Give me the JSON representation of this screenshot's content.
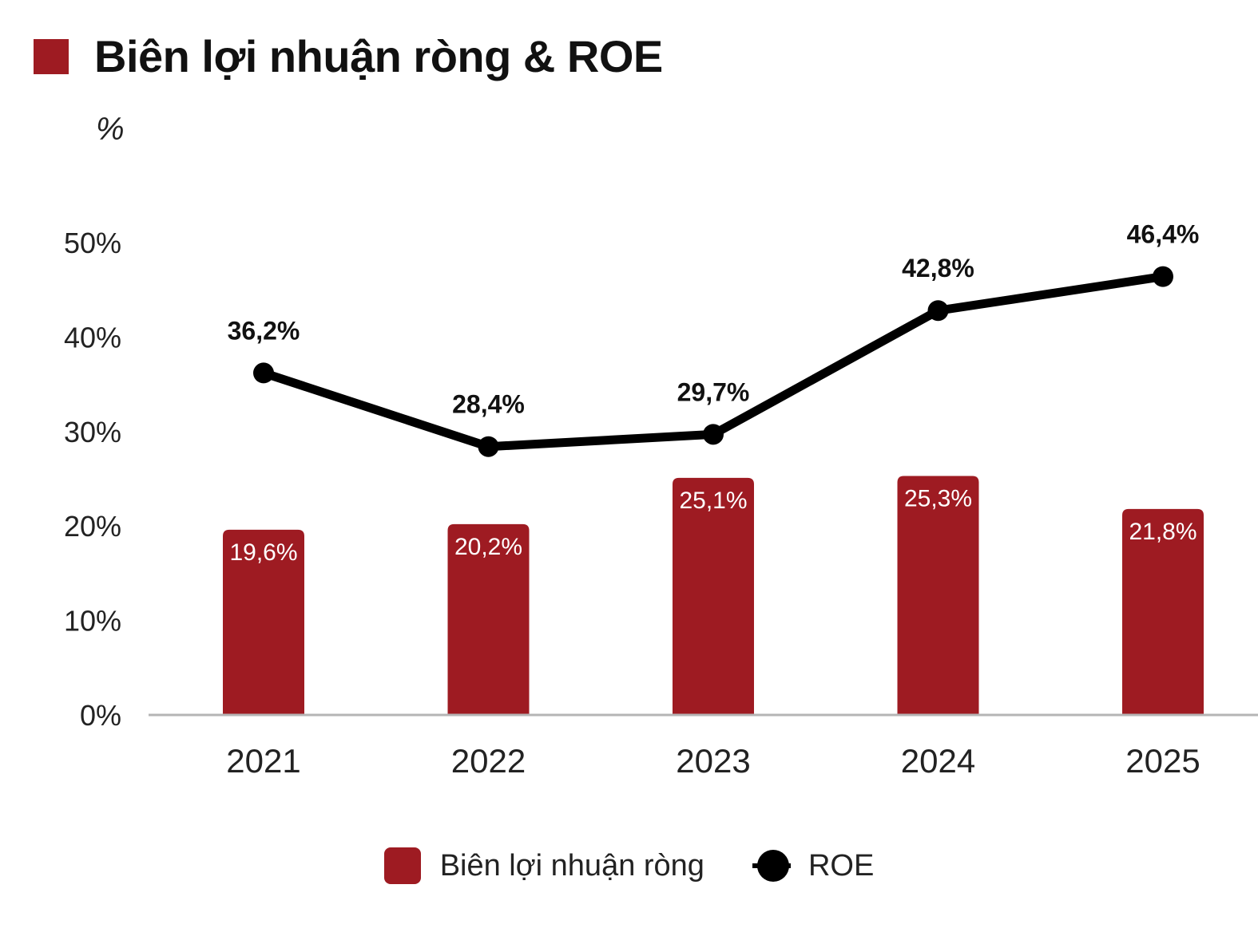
{
  "title": "Biên lợi nhuận ròng & ROE",
  "unit_label": "%",
  "colors": {
    "bar": "#9e1b22",
    "line": "#000000",
    "axis": "#b5b5b5"
  },
  "chart_data": {
    "type": "bar+line",
    "categories": [
      "2021",
      "2022",
      "2023",
      "2024",
      "2025"
    ],
    "series": [
      {
        "name": "Biên lợi nhuận ròng",
        "type": "bar",
        "values": [
          19.6,
          20.2,
          25.1,
          25.3,
          21.8
        ],
        "labels": [
          "19,6%",
          "20,2%",
          "25,1%",
          "25,3%",
          "21,8%"
        ]
      },
      {
        "name": "ROE",
        "type": "line",
        "values": [
          36.2,
          28.4,
          29.7,
          42.8,
          46.4
        ],
        "labels": [
          "36,2%",
          "28,4%",
          "29,7%",
          "42,8%",
          "46,4%"
        ]
      }
    ],
    "y_ticks": [
      "0%",
      "10%",
      "20%",
      "30%",
      "40%",
      "50%"
    ],
    "ylim": [
      0,
      50
    ],
    "grid": false,
    "legend_position": "bottom"
  },
  "legend": [
    {
      "label": "Biên lợi nhuận ròng",
      "icon": "bar-swatch"
    },
    {
      "label": "ROE",
      "icon": "line-dot"
    }
  ]
}
